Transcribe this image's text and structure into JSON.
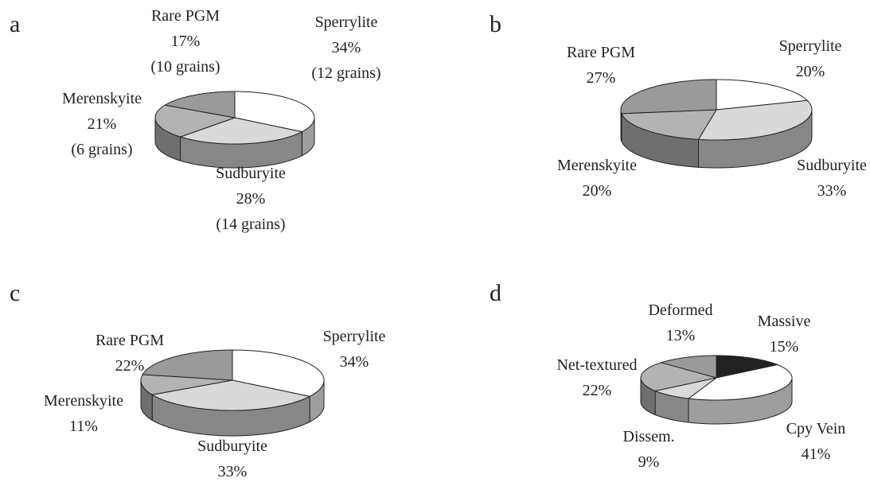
{
  "chart_data": [
    {
      "type": "pie",
      "panel": "a",
      "categories": [
        "Sperrylite",
        "Sudburyite",
        "Merenskyite",
        "Rare PGM"
      ],
      "values": [
        34,
        28,
        21,
        17
      ],
      "value_labels": [
        "34%",
        "28%",
        "21%",
        "17%"
      ],
      "grain_labels": [
        "(12 grains)",
        "(14 grains)",
        "(6 grains)",
        "(10 grains)"
      ],
      "colors": [
        "#ffffff",
        "#d9d9d9",
        "#b3b3b3",
        "#9a9a9a"
      ]
    },
    {
      "type": "pie",
      "panel": "b",
      "categories": [
        "Sperrylite",
        "Sudburyite",
        "Merenskyite",
        "Rare PGM"
      ],
      "values": [
        20,
        33,
        20,
        27
      ],
      "value_labels": [
        "20%",
        "33%",
        "20%",
        "27%"
      ],
      "colors": [
        "#ffffff",
        "#d9d9d9",
        "#b3b3b3",
        "#9a9a9a"
      ]
    },
    {
      "type": "pie",
      "panel": "c",
      "categories": [
        "Sperrylite",
        "Sudburyite",
        "Merenskyite",
        "Rare PGM"
      ],
      "values": [
        34,
        33,
        11,
        22
      ],
      "value_labels": [
        "34%",
        "33%",
        "11%",
        "22%"
      ],
      "colors": [
        "#ffffff",
        "#d9d9d9",
        "#b3b3b3",
        "#9a9a9a"
      ]
    },
    {
      "type": "pie",
      "panel": "d",
      "categories": [
        "Massive",
        "Cpy Vein",
        "Dissem.",
        "Net-textured",
        "Deformed"
      ],
      "values": [
        15,
        41,
        9,
        22,
        13
      ],
      "value_labels": [
        "15%",
        "41%",
        "9%",
        "22%",
        "13%"
      ],
      "colors": [
        "#222222",
        "#ffffff",
        "#d9d9d9",
        "#b3b3b3",
        "#9a9a9a"
      ]
    }
  ]
}
